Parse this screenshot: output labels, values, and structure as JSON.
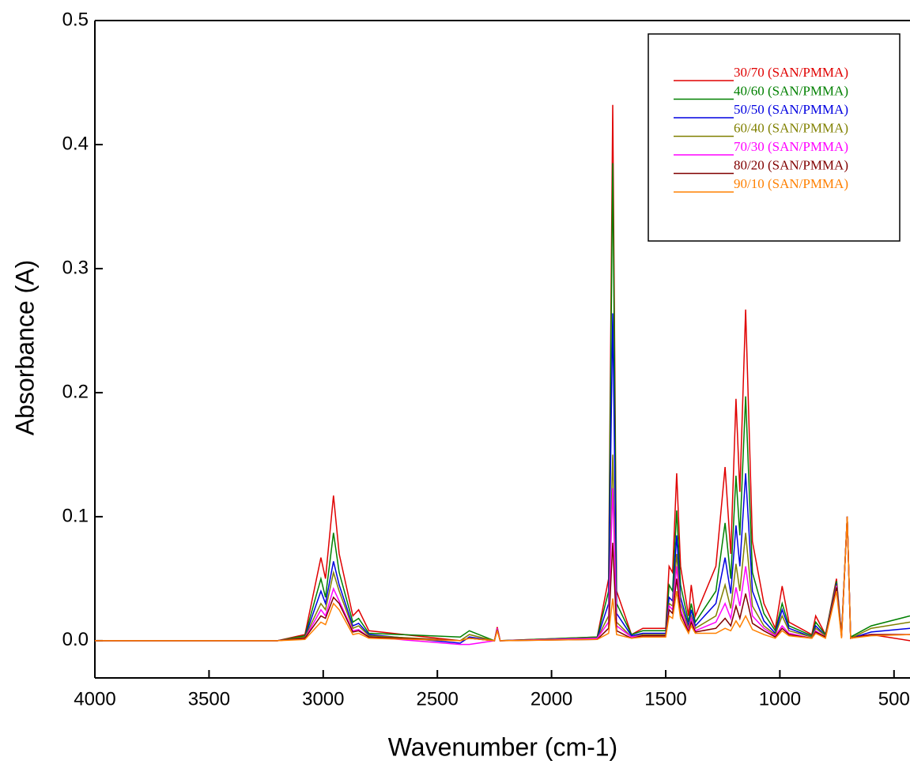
{
  "chart_data": {
    "type": "line",
    "xlabel": "Wavenumber (cm-1)",
    "ylabel": "Absorbance (A)",
    "xlim": [
      4000,
      430
    ],
    "ylim": [
      -0.03,
      0.5
    ],
    "xticks": [
      4000,
      3500,
      3000,
      2500,
      2000,
      1500,
      1000,
      500
    ],
    "yticks": [
      {
        "value": 0,
        "label": "0.0"
      },
      0.1,
      0.2,
      0.3,
      0.4,
      0.5
    ],
    "legend": "upper right",
    "x": [
      4000,
      3200,
      3080,
      3010,
      2990,
      2955,
      2930,
      2870,
      2845,
      2800,
      2400,
      2360,
      2250,
      2238,
      2225,
      1800,
      1750,
      1732,
      1715,
      1650,
      1600,
      1500,
      1485,
      1470,
      1452,
      1435,
      1400,
      1388,
      1370,
      1280,
      1240,
      1215,
      1192,
      1175,
      1150,
      1120,
      1070,
      1020,
      990,
      960,
      860,
      843,
      800,
      752,
      730,
      705,
      690,
      600,
      430
    ],
    "series": [
      {
        "name": "30/70 (SAN/PMMA)",
        "color": "#e00000",
        "values": [
          0,
          0,
          0.005,
          0.067,
          0.05,
          0.117,
          0.07,
          0.02,
          0.025,
          0.008,
          0,
          0.002,
          0,
          0.011,
          0,
          0.003,
          0.05,
          0.432,
          0.04,
          0.005,
          0.01,
          0.01,
          0.06,
          0.055,
          0.135,
          0.06,
          0.02,
          0.045,
          0.02,
          0.06,
          0.14,
          0.07,
          0.195,
          0.12,
          0.267,
          0.08,
          0.03,
          0.01,
          0.044,
          0.015,
          0.005,
          0.02,
          0.005,
          0.05,
          0.005,
          0.1,
          0.003,
          0.005,
          0
        ]
      },
      {
        "name": "40/60 (SAN/PMMA)",
        "color": "#008000",
        "values": [
          0,
          0,
          0.004,
          0.05,
          0.035,
          0.087,
          0.055,
          0.015,
          0.018,
          0.006,
          0.003,
          0.008,
          0,
          0.01,
          0,
          0.003,
          0.04,
          0.385,
          0.03,
          0.005,
          0.008,
          0.008,
          0.045,
          0.04,
          0.105,
          0.045,
          0.015,
          0.03,
          0.015,
          0.04,
          0.095,
          0.05,
          0.133,
          0.085,
          0.197,
          0.055,
          0.022,
          0.008,
          0.03,
          0.012,
          0.004,
          0.015,
          0.005,
          0.048,
          0.005,
          0.1,
          0.003,
          0.012,
          0.02
        ]
      },
      {
        "name": "50/50 (SAN/PMMA)",
        "color": "#0000e0",
        "values": [
          0,
          0,
          0.003,
          0.04,
          0.03,
          0.064,
          0.045,
          0.012,
          0.014,
          0.005,
          -0.002,
          0.003,
          0,
          0.01,
          0,
          0.002,
          0.03,
          0.264,
          0.022,
          0.004,
          0.006,
          0.006,
          0.035,
          0.032,
          0.085,
          0.035,
          0.012,
          0.025,
          0.012,
          0.03,
          0.067,
          0.038,
          0.093,
          0.06,
          0.135,
          0.04,
          0.016,
          0.006,
          0.025,
          0.01,
          0.003,
          0.012,
          0.004,
          0.046,
          0.004,
          0.1,
          0.002,
          0.007,
          0.01
        ]
      },
      {
        "name": "60/40 (SAN/PMMA)",
        "color": "#808000",
        "values": [
          0,
          0,
          0.003,
          0.03,
          0.025,
          0.055,
          0.04,
          0.01,
          0.012,
          0.004,
          0,
          0.005,
          0,
          0.01,
          0,
          0.002,
          0.02,
          0.15,
          0.015,
          0.003,
          0.005,
          0.005,
          0.03,
          0.028,
          0.07,
          0.03,
          0.01,
          0.02,
          0.01,
          0.02,
          0.045,
          0.026,
          0.062,
          0.04,
          0.087,
          0.028,
          0.012,
          0.005,
          0.02,
          0.008,
          0.003,
          0.01,
          0.004,
          0.045,
          0.004,
          0.1,
          0.002,
          0.01,
          0.015
        ]
      },
      {
        "name": "70/30 (SAN/PMMA)",
        "color": "#ff00ff",
        "values": [
          0,
          0,
          0.002,
          0.025,
          0.02,
          0.042,
          0.032,
          0.008,
          0.009,
          0.003,
          -0.003,
          -0.003,
          0,
          0.01,
          0,
          0.002,
          0.015,
          0.123,
          0.012,
          0.003,
          0.004,
          0.004,
          0.028,
          0.025,
          0.06,
          0.025,
          0.008,
          0.018,
          0.008,
          0.015,
          0.03,
          0.018,
          0.043,
          0.028,
          0.06,
          0.02,
          0.01,
          0.004,
          0.012,
          0.006,
          0.002,
          0.008,
          0.003,
          0.044,
          0.003,
          0.1,
          0.002,
          0.005,
          0.005
        ]
      },
      {
        "name": "80/20 (SAN/PMMA)",
        "color": "#800000",
        "values": [
          0,
          0,
          0.002,
          0.02,
          0.018,
          0.035,
          0.03,
          0.007,
          0.008,
          0.003,
          0,
          0.002,
          0,
          0.009,
          0,
          0.001,
          0.01,
          0.079,
          0.008,
          0.002,
          0.004,
          0.004,
          0.025,
          0.022,
          0.05,
          0.022,
          0.007,
          0.015,
          0.007,
          0.01,
          0.018,
          0.012,
          0.028,
          0.018,
          0.038,
          0.014,
          0.008,
          0.003,
          0.01,
          0.005,
          0.002,
          0.007,
          0.003,
          0.043,
          0.003,
          0.1,
          0.002,
          0.005,
          0.005
        ]
      },
      {
        "name": "90/10 (SAN/PMMA)",
        "color": "#ff8000",
        "values": [
          0,
          0,
          0.001,
          0.015,
          0.013,
          0.03,
          0.025,
          0.005,
          0.006,
          0.002,
          0,
          0.002,
          0,
          0.008,
          0,
          0.001,
          0.006,
          0.034,
          0.005,
          0.002,
          0.003,
          0.003,
          0.02,
          0.018,
          0.04,
          0.018,
          0.006,
          0.012,
          0.006,
          0.006,
          0.01,
          0.008,
          0.016,
          0.011,
          0.02,
          0.009,
          0.005,
          0.002,
          0.008,
          0.004,
          0.002,
          0.006,
          0.002,
          0.04,
          0.002,
          0.1,
          0.002,
          0.004,
          0.005
        ]
      }
    ]
  }
}
